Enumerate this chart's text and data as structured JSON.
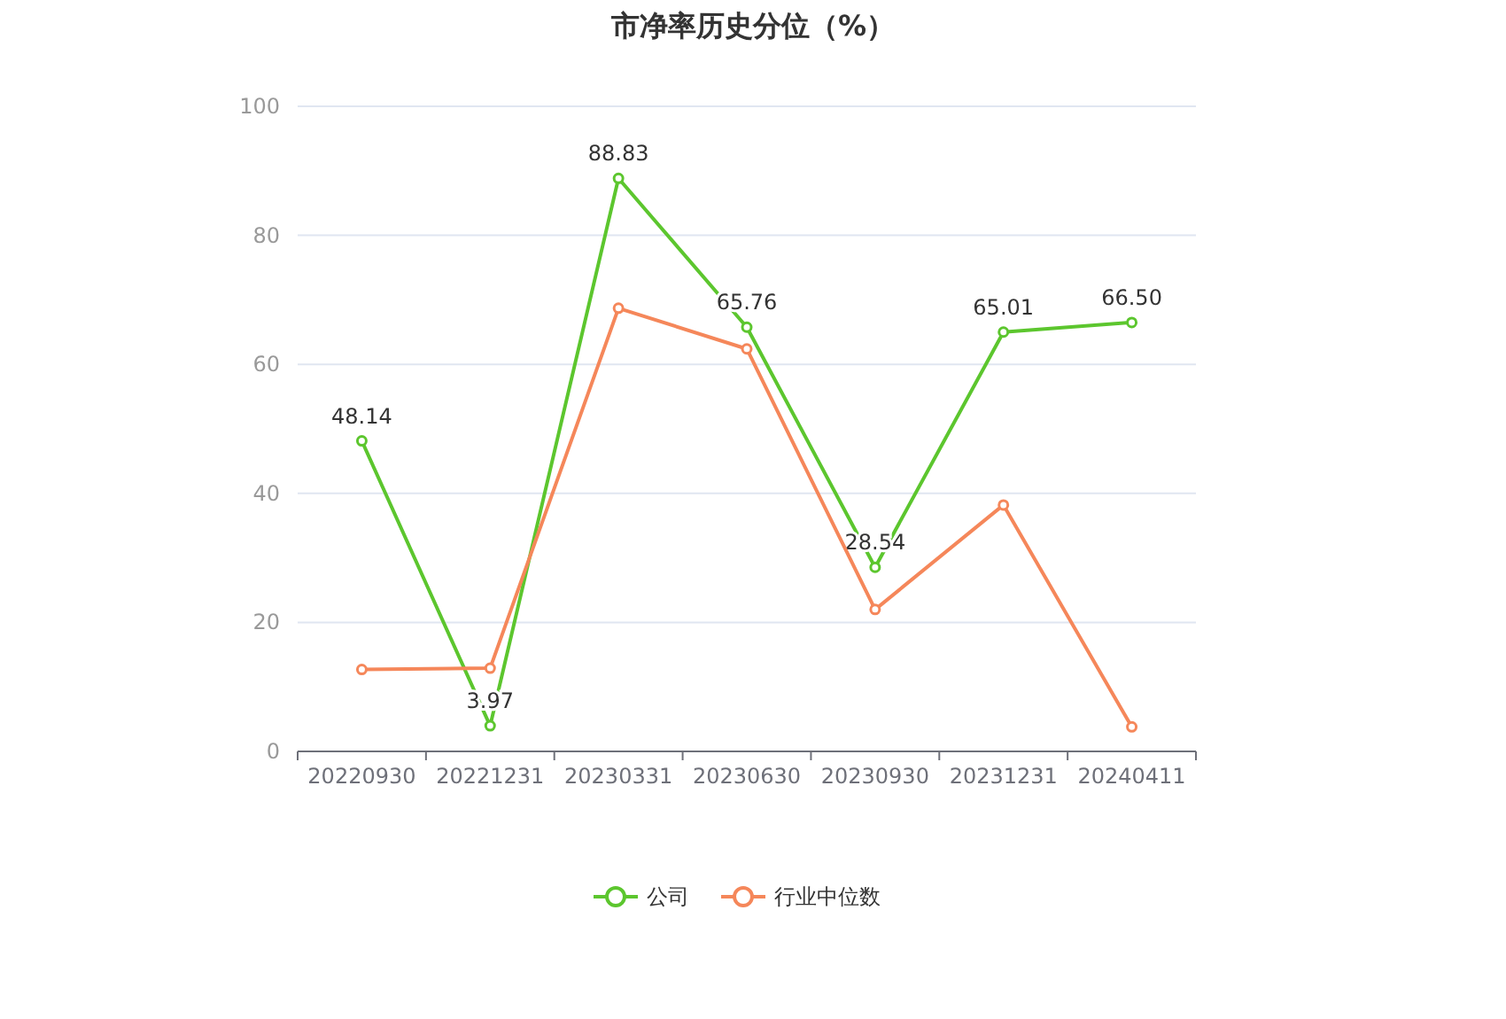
{
  "chart_data": {
    "type": "line",
    "title": "市净率历史分位（%）",
    "categories": [
      "20220930",
      "20221231",
      "20230331",
      "20230630",
      "20230930",
      "20231231",
      "20240411"
    ],
    "series": [
      {
        "name": "公司",
        "color": "#5cc62e",
        "values": [
          48.14,
          3.97,
          88.83,
          65.76,
          28.54,
          65.01,
          66.5
        ],
        "value_labels": [
          "48.14",
          "3.97",
          "88.83",
          "65.76",
          "28.54",
          "65.01",
          "66.50"
        ]
      },
      {
        "name": "行业中位数",
        "color": "#f5875a",
        "values": [
          12.7,
          12.9,
          68.7,
          62.4,
          22.0,
          38.2,
          3.8
        ]
      }
    ],
    "ylim": [
      0,
      100
    ],
    "yticks": [
      0,
      20,
      40,
      60,
      80,
      100
    ],
    "grid": "y",
    "legend": "bottom",
    "marker": "circle",
    "line_style": "solid"
  }
}
